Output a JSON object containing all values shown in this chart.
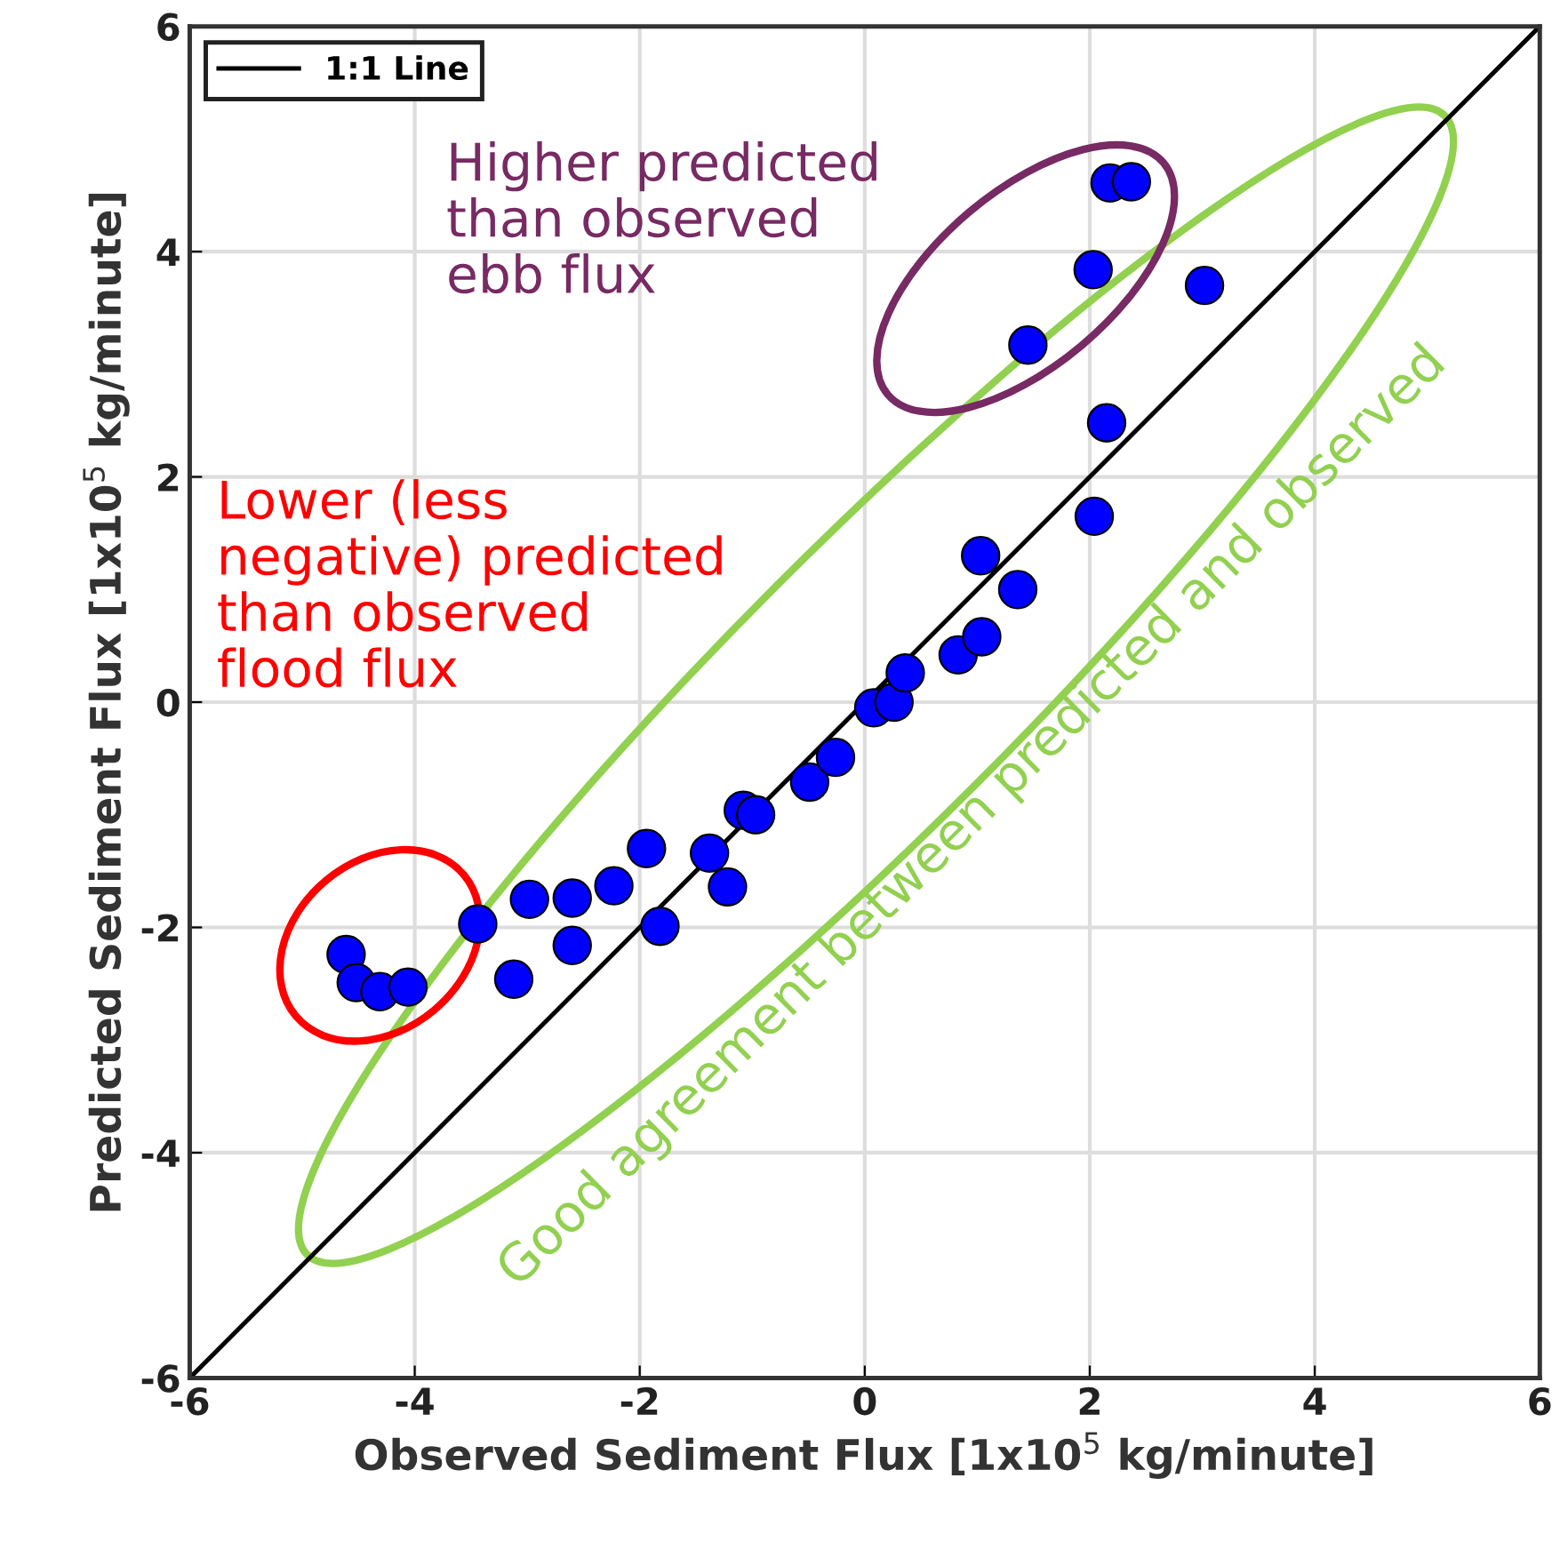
{
  "chart_data": {
    "type": "scatter",
    "xlabel": "Observed Sediment Flux [1x10$^{5}$ kg/minute]",
    "ylabel": "Predicted Sediment Flux [1x10$^{5}$ kg/minute]",
    "xlim": [
      -6,
      6
    ],
    "ylim": [
      -6,
      6
    ],
    "xticks": [
      -6,
      -4,
      -2,
      0,
      2,
      4,
      6
    ],
    "yticks": [
      -6,
      -4,
      -2,
      0,
      2,
      4,
      6
    ],
    "grid": true,
    "legend": "top left",
    "marker": "circle",
    "series": [
      {
        "color": "#0000ff",
        "x": [
          -4.61,
          -4.52,
          -4.31,
          -4.06,
          -3.44,
          -3.12,
          -2.98,
          -2.6,
          -2.6,
          -2.23,
          -1.94,
          -1.82,
          -1.38,
          -1.22,
          -1.08,
          -0.97,
          -0.49,
          -0.26,
          0.08,
          0.26,
          0.36,
          0.83,
          1.04,
          1.03,
          1.36,
          2.04,
          2.15,
          1.45,
          2.03,
          3.02,
          2.18,
          2.37
        ],
        "values": [
          -2.24,
          -2.49,
          -2.57,
          -2.53,
          -1.97,
          -2.46,
          -1.75,
          -1.74,
          -2.16,
          -1.63,
          -1.3,
          -1.99,
          -1.34,
          -1.64,
          -0.96,
          -1.0,
          -0.71,
          -0.49,
          -0.05,
          0.0,
          0.26,
          0.42,
          0.58,
          1.3,
          1.0,
          1.65,
          2.48,
          3.17,
          3.84,
          3.7,
          4.61,
          4.62
        ]
      },
      {
        "type": "line",
        "name": "1:1 Line",
        "color": "#000000",
        "marker": "none",
        "line_style": "solid",
        "x": [
          -6,
          6
        ],
        "values": [
          -6,
          6
        ]
      }
    ],
    "annotations": [
      "Lower (less\nnegative) predicted\nthan observed\nflood flux",
      "Higher predicted\nthan observed\nebb flux",
      "Good agreement between predicted and observed"
    ]
  }
}
